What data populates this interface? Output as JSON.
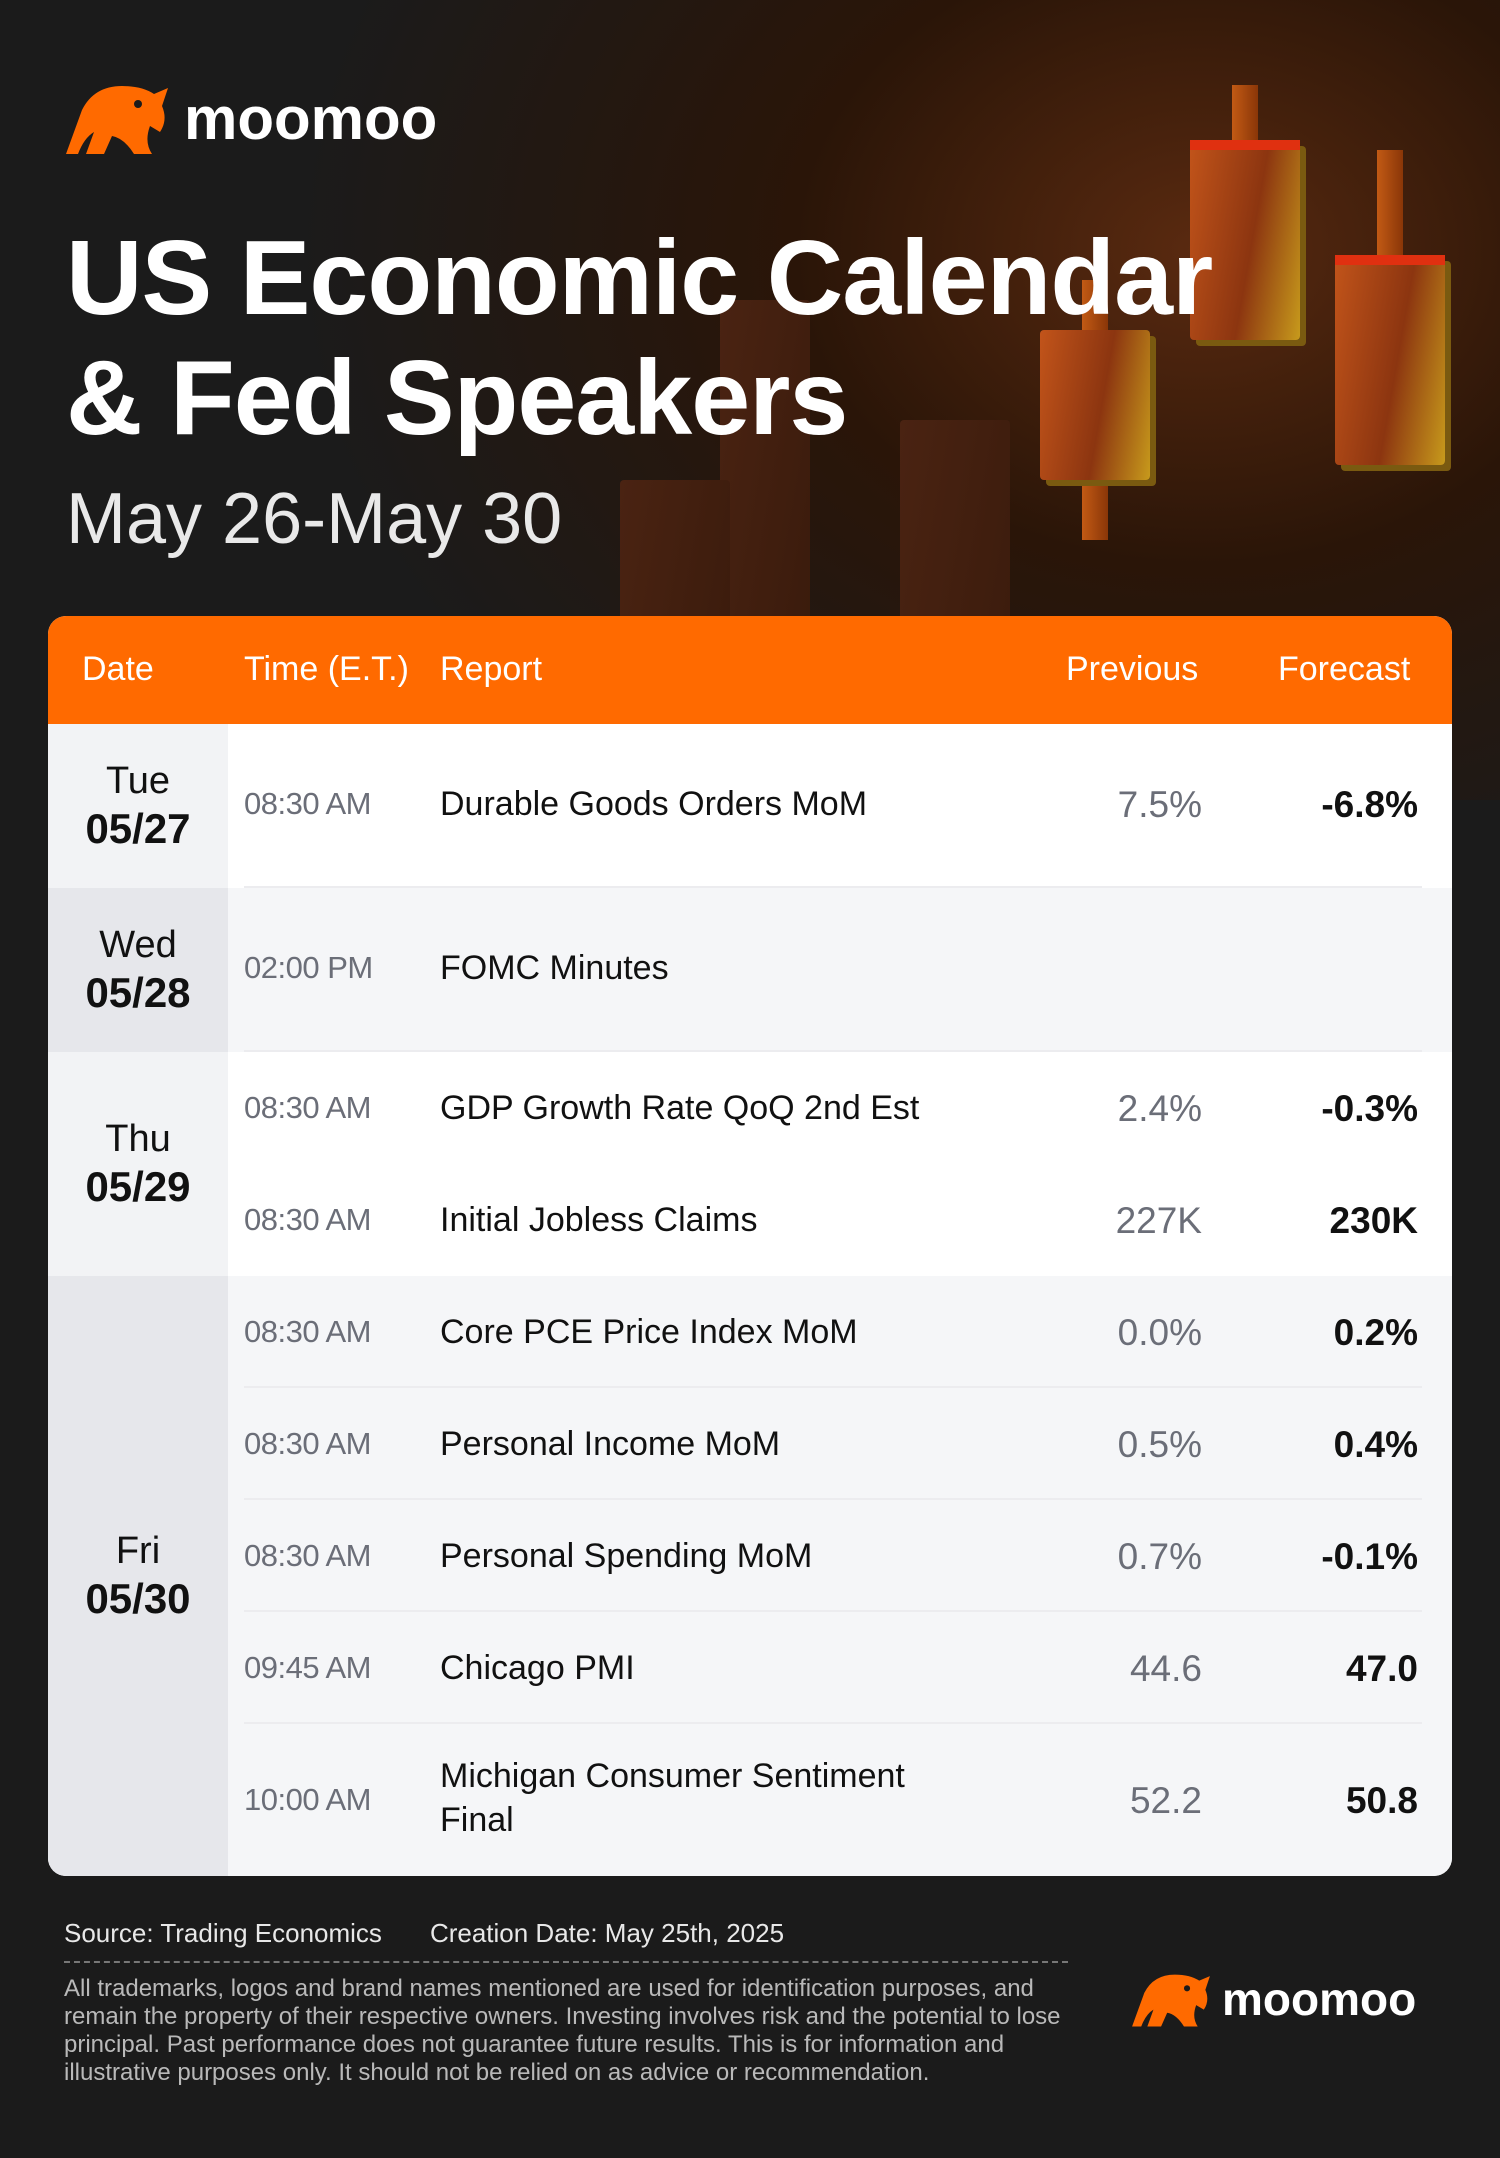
{
  "brand": {
    "name": "moomoo"
  },
  "header": {
    "title_line1": "US Economic Calendar",
    "title_line2": "& Fed Speakers",
    "date_range": "May 26-May 30"
  },
  "table": {
    "columns": {
      "date": "Date",
      "time": "Time (E.T.)",
      "report": "Report",
      "previous": "Previous",
      "forecast": "Forecast"
    },
    "days": [
      {
        "dow": "Tue",
        "date": "05/27",
        "rows": [
          {
            "time": "08:30 AM",
            "report": "Durable Goods Orders MoM",
            "previous": "7.5%",
            "forecast": "-6.8%"
          }
        ]
      },
      {
        "dow": "Wed",
        "date": "05/28",
        "rows": [
          {
            "time": "02:00 PM",
            "report": "FOMC Minutes",
            "previous": "",
            "forecast": ""
          }
        ]
      },
      {
        "dow": "Thu",
        "date": "05/29",
        "rows": [
          {
            "time": "08:30 AM",
            "report": "GDP Growth Rate QoQ 2nd Est",
            "previous": "2.4%",
            "forecast": "-0.3%"
          },
          {
            "time": "08:30 AM",
            "report": "Initial Jobless Claims",
            "previous": "227K",
            "forecast": "230K"
          }
        ]
      },
      {
        "dow": "Fri",
        "date": "05/30",
        "rows": [
          {
            "time": "08:30 AM",
            "report": "Core PCE Price Index MoM",
            "previous": "0.0%",
            "forecast": "0.2%"
          },
          {
            "time": "08:30 AM",
            "report": "Personal Income MoM",
            "previous": "0.5%",
            "forecast": "0.4%"
          },
          {
            "time": "08:30 AM",
            "report": "Personal Spending MoM",
            "previous": "0.7%",
            "forecast": "-0.1%"
          },
          {
            "time": "09:45 AM",
            "report": "Chicago PMI",
            "previous": "44.6",
            "forecast": "47.0"
          },
          {
            "time": "10:00 AM",
            "report": "Michigan Consumer Sentiment Final",
            "previous": "52.2",
            "forecast": "50.8"
          }
        ]
      }
    ]
  },
  "footer": {
    "source": "Source: Trading Economics",
    "created": "Creation Date: May 25th, 2025",
    "disclaimer": "All trademarks, logos and brand names mentioned are used for identification purposes, and remain the property of their respective owners. Investing involves risk and the potential to lose principal. Past performance does not guarantee future results. This is for information and illustrative purposes only. It should not be relied on as advice or recommendation."
  },
  "colors": {
    "accent": "#ff6a00",
    "background": "#1b1b1b"
  },
  "icons": [
    "moomoo-bull-logo-icon"
  ]
}
